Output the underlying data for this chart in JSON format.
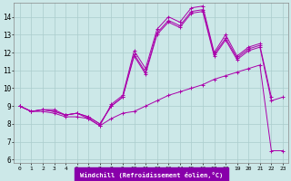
{
  "xlabel": "Windchill (Refroidissement éolien,°C)",
  "background_color": "#cce8e8",
  "grid_color": "#aacccc",
  "line_color": "#aa00aa",
  "xmin": -0.5,
  "xmax": 23.5,
  "ymin": 5.8,
  "ymax": 14.8,
  "yticks": [
    6,
    7,
    8,
    9,
    10,
    11,
    12,
    13,
    14
  ],
  "xticks": [
    0,
    1,
    2,
    3,
    4,
    5,
    6,
    7,
    8,
    9,
    10,
    11,
    12,
    13,
    14,
    15,
    16,
    17,
    18,
    19,
    20,
    21,
    22,
    23
  ],
  "series": [
    {
      "x": [
        0,
        1,
        2,
        3,
        4,
        5,
        6,
        7,
        8,
        9,
        10,
        11,
        12,
        13,
        14,
        15,
        16,
        17,
        18,
        19,
        20,
        21
      ],
      "y": [
        9.0,
        8.7,
        8.8,
        8.8,
        8.5,
        8.6,
        8.3,
        7.9,
        9.1,
        9.6,
        12.1,
        11.1,
        13.3,
        14.0,
        13.7,
        14.5,
        14.6,
        12.0,
        13.0,
        11.8,
        12.3,
        12.5
      ]
    },
    {
      "x": [
        0,
        1,
        2,
        3,
        4,
        5,
        6,
        7,
        8,
        9,
        10,
        11,
        12,
        13,
        14,
        15,
        16,
        17,
        18,
        19,
        20,
        21,
        22
      ],
      "y": [
        9.0,
        8.7,
        8.8,
        8.7,
        8.5,
        8.6,
        8.4,
        8.0,
        9.0,
        9.5,
        11.9,
        10.9,
        13.1,
        13.8,
        13.5,
        14.3,
        14.4,
        11.9,
        12.8,
        11.7,
        12.2,
        12.4,
        9.5
      ]
    },
    {
      "x": [
        0,
        1,
        2,
        3,
        4,
        5,
        6,
        7,
        8,
        9,
        10,
        11,
        12,
        13,
        14,
        15,
        16,
        17,
        18,
        19,
        20,
        21,
        22,
        23
      ],
      "y": [
        9.0,
        8.7,
        8.8,
        8.7,
        8.5,
        8.6,
        8.4,
        8.0,
        9.0,
        9.5,
        11.8,
        10.8,
        13.0,
        13.7,
        13.4,
        14.2,
        14.3,
        11.8,
        12.7,
        11.6,
        12.1,
        12.3,
        9.3,
        9.5
      ]
    },
    {
      "x": [
        0,
        1,
        2,
        3,
        4,
        5,
        6,
        7,
        8,
        9,
        10,
        11,
        12,
        13,
        14,
        15,
        16,
        17,
        18,
        19,
        20,
        21,
        22,
        23
      ],
      "y": [
        9.0,
        8.7,
        8.7,
        8.6,
        8.4,
        8.4,
        8.3,
        7.9,
        8.3,
        8.6,
        8.7,
        9.0,
        9.3,
        9.6,
        9.8,
        10.0,
        10.2,
        10.5,
        10.7,
        10.9,
        11.1,
        11.3,
        6.5,
        6.5
      ]
    }
  ]
}
